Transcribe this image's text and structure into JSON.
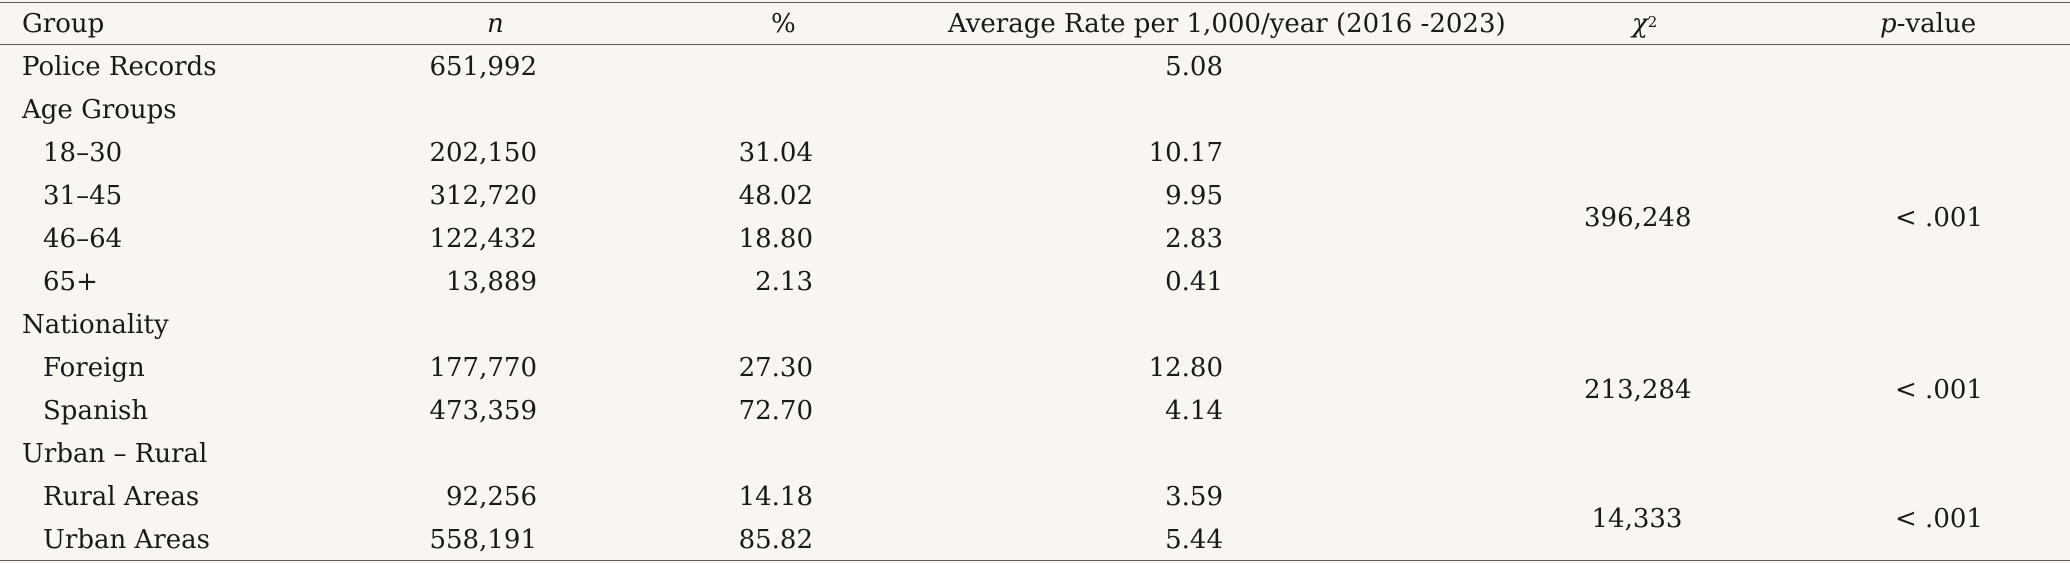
{
  "header": {
    "group": "Group",
    "n": "n",
    "pct": "%",
    "rate": "Average Rate per 1,000/year (2016 -2023)",
    "chi_base": "χ",
    "chi_sup": "2",
    "p_italic": "p",
    "p_rest": "-value"
  },
  "rows": [
    {
      "label": "Police Records",
      "n": "651,992",
      "pct": "",
      "rate": "5.08"
    },
    {
      "label": "Age Groups",
      "n": "",
      "pct": "",
      "rate": ""
    },
    {
      "label": "18–30",
      "n": "202,150",
      "pct": "31.04",
      "rate": "10.17"
    },
    {
      "label": "31–45",
      "n": "312,720",
      "pct": "48.02",
      "rate": "9.95"
    },
    {
      "label": "46–64",
      "n": "122,432",
      "pct": "18.80",
      "rate": "2.83"
    },
    {
      "label": "65+",
      "n": "13,889",
      "pct": "2.13",
      "rate": "0.41"
    },
    {
      "label": "Nationality",
      "n": "",
      "pct": "",
      "rate": ""
    },
    {
      "label": "Foreign",
      "n": "177,770",
      "pct": "27.30",
      "rate": "12.80"
    },
    {
      "label": "Spanish",
      "n": "473,359",
      "pct": "72.70",
      "rate": "4.14"
    },
    {
      "label": "Urban – Rural",
      "n": "",
      "pct": "",
      "rate": ""
    },
    {
      "label": "Rural Areas",
      "n": "92,256",
      "pct": "14.18",
      "rate": "3.59"
    },
    {
      "label": "Urban Areas",
      "n": "558,191",
      "pct": "85.82",
      "rate": "5.44"
    }
  ],
  "tests": [
    {
      "group": "Age Groups",
      "chi2": "396,248",
      "p": "< .001"
    },
    {
      "group": "Nationality",
      "chi2": "213,284",
      "p": "< .001"
    },
    {
      "group": "Urban – Rural",
      "chi2": "14,333",
      "p": "< .001"
    }
  ]
}
